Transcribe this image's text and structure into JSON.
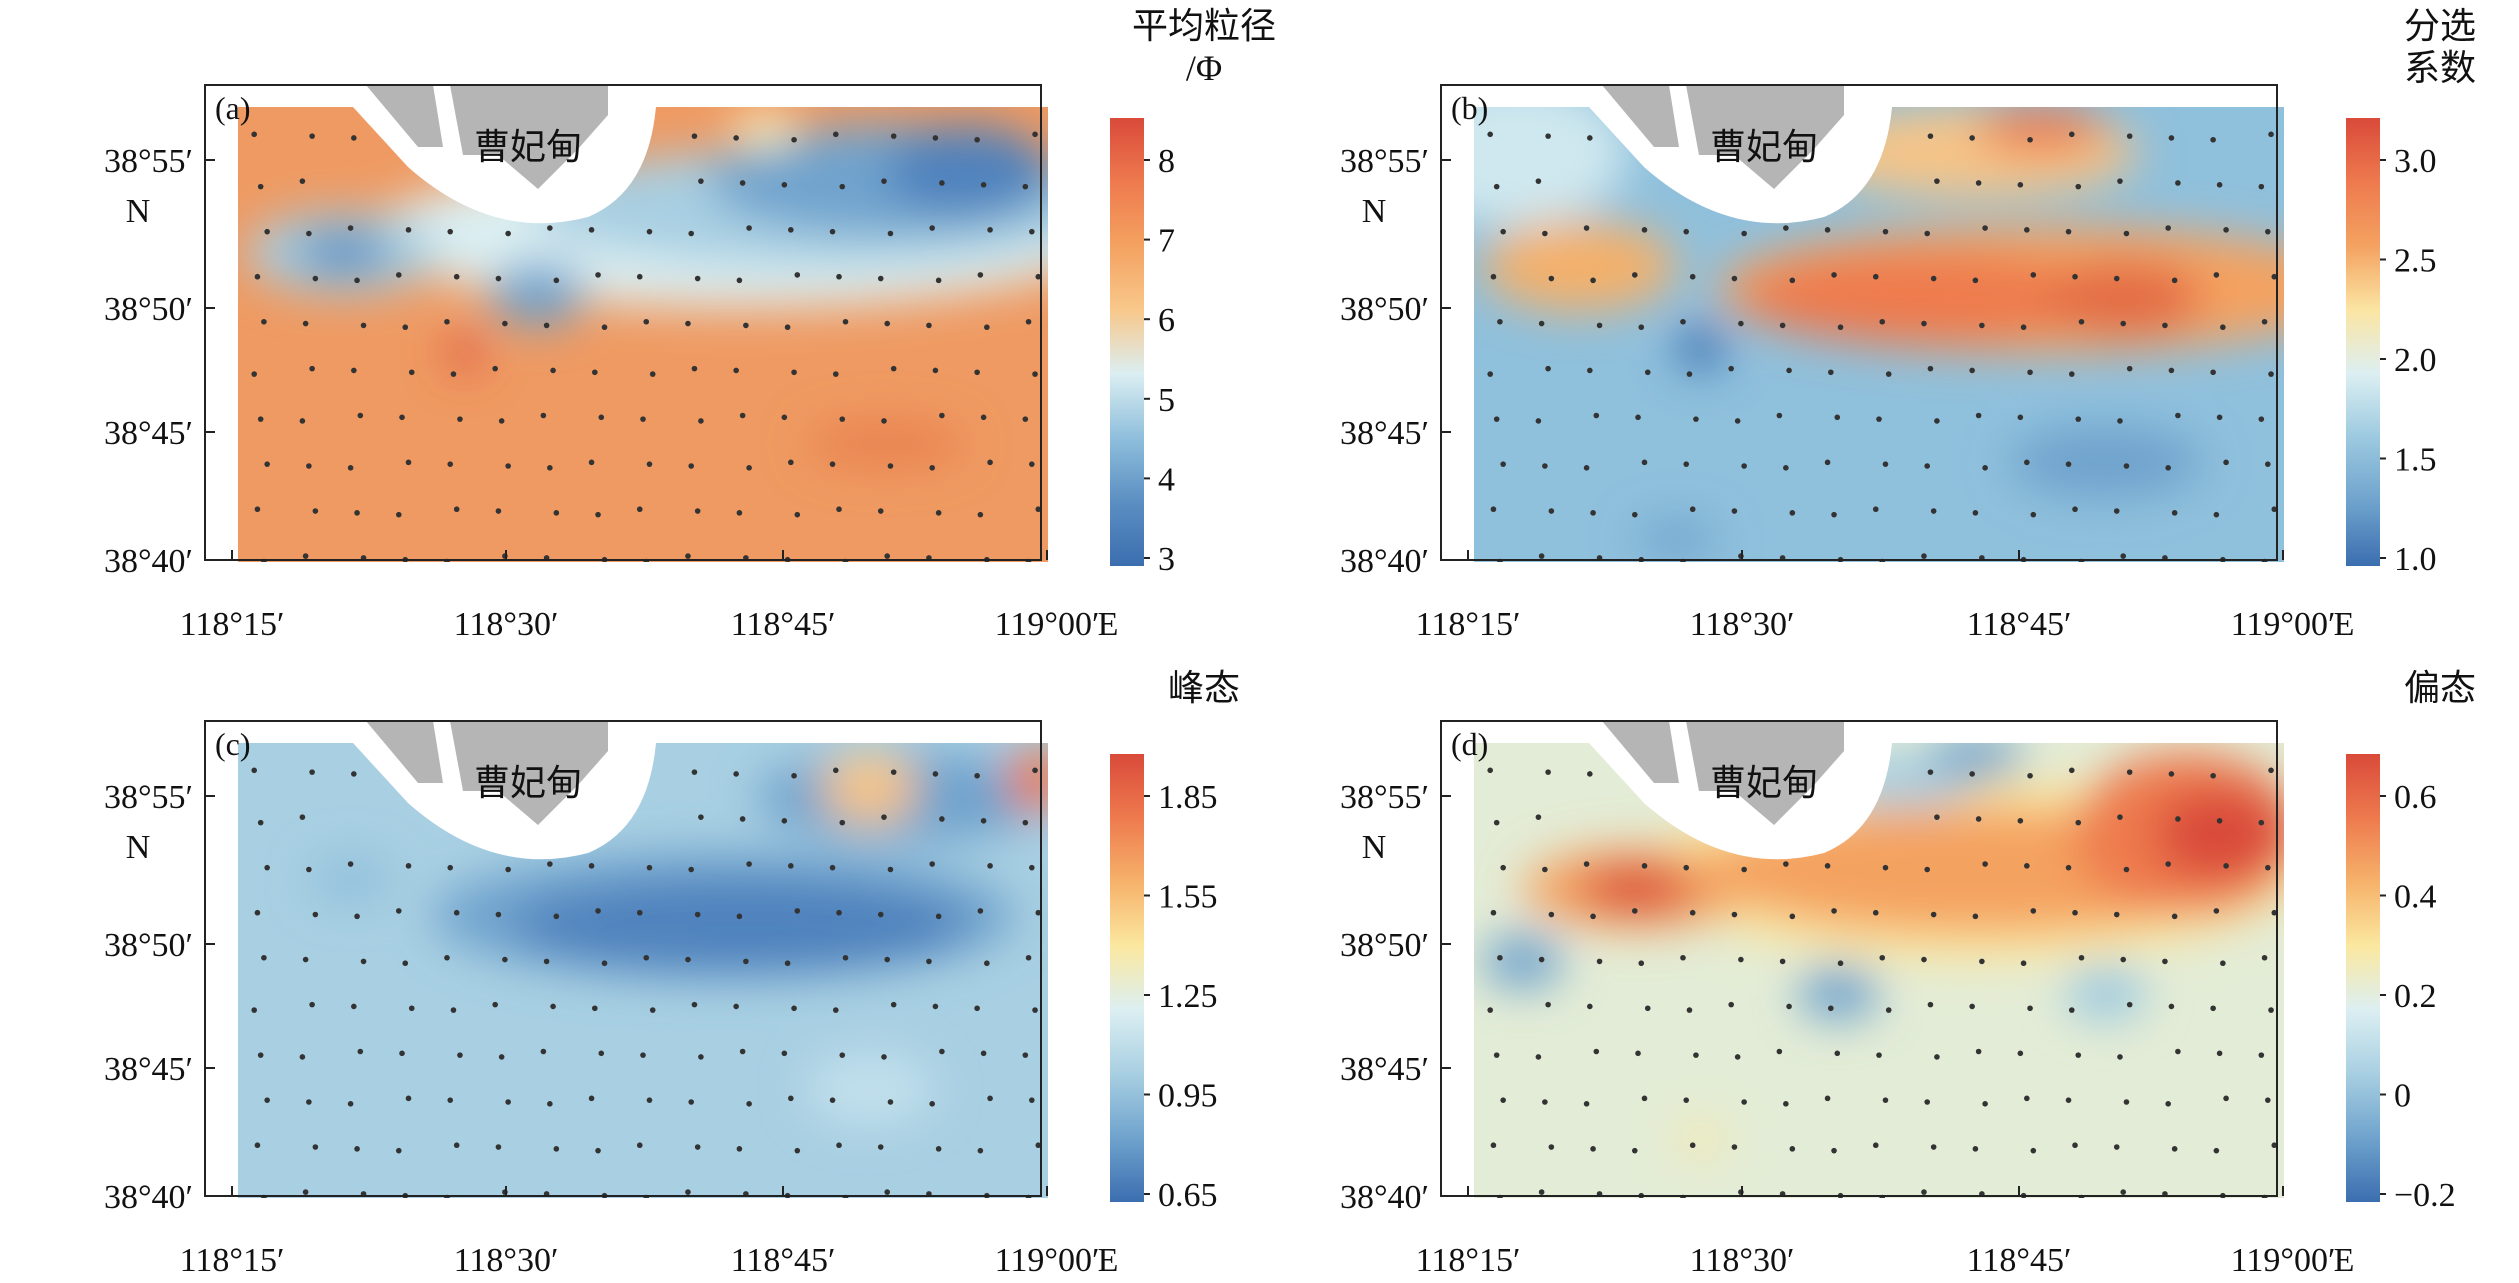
{
  "figure": {
    "panels": [
      {
        "id": "a",
        "label": "(a)",
        "colorbar_title": [
          "平均粒径",
          "/Φ"
        ],
        "colorbar_ticks": [
          "8",
          "7",
          "6",
          "5",
          "4",
          "3"
        ],
        "scheme": "mean_grain_size",
        "town_label": "曹妃甸"
      },
      {
        "id": "b",
        "label": "(b)",
        "colorbar_title": [
          "分选",
          "系数"
        ],
        "colorbar_ticks": [
          "3.0",
          "2.5",
          "2.0",
          "1.5",
          "1.0"
        ],
        "scheme": "sorting",
        "town_label": "曹妃甸"
      },
      {
        "id": "c",
        "label": "(c)",
        "colorbar_title": [
          "峰态"
        ],
        "colorbar_ticks": [
          "1.85",
          "1.55",
          "1.25",
          "0.95",
          "0.65"
        ],
        "scheme": "kurtosis",
        "town_label": "曹妃甸"
      },
      {
        "id": "d",
        "label": "(d)",
        "colorbar_title": [
          "偏态"
        ],
        "colorbar_ticks": [
          "0.6",
          "0.4",
          "0.2",
          "0",
          "−0.2"
        ],
        "scheme": "skewness",
        "town_label": "曹妃甸"
      }
    ],
    "y_ticks": [
      "38°55′",
      "38°50′",
      "38°45′",
      "38°40′"
    ],
    "y_axis_label": "N",
    "x_ticks": [
      "118°15′",
      "118°30′",
      "118°45′",
      "119°00′"
    ],
    "x_axis_unit": "E"
  },
  "colors": {
    "ramp": [
      "#3b6eaf",
      "#6fa3cd",
      "#a8cfe2",
      "#dceff2",
      "#fbf2bf",
      "#f6c487",
      "#ee9057",
      "#d94a3a"
    ],
    "land": "#b5b5b5",
    "coast": "#ffffff",
    "station": "#333333"
  }
}
